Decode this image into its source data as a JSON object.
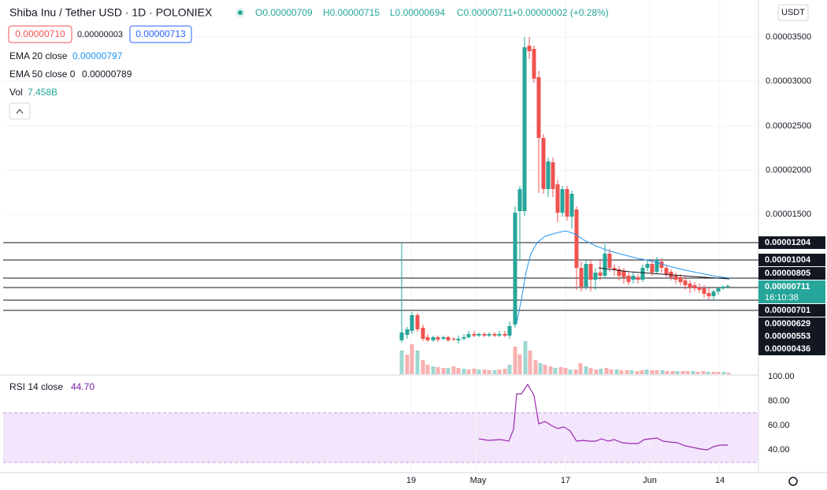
{
  "header": {
    "title": "Shiba Inu / Tether USD · 1D · POLONIEX",
    "open": "O0.00000709",
    "high": "H0.00000715",
    "low": "L0.00000694",
    "close": "C0.00000711",
    "change": "+0.00000002 (+0.28%)"
  },
  "price_boxes": {
    "sell": "0.00000710",
    "spread": "0.00000003",
    "buy": "0.00000713"
  },
  "legend": {
    "ema20_label": "EMA 20 close",
    "ema20_value": "0.00000797",
    "ema50_label": "EMA 50 close 0",
    "ema50_value": "0.00000789",
    "vol_label": "Vol",
    "vol_value": "7.458B"
  },
  "currency": "USDT",
  "price_axis": [
    "0.00003500",
    "0.00003000",
    "0.00002500",
    "0.00002000",
    "0.00001500"
  ],
  "level_tags": [
    "0.00001204",
    "0.00001004",
    "0.00000805",
    "0.00000701",
    "0.00000629",
    "0.00000553",
    "0.00000436"
  ],
  "last_price": {
    "price": "0.00000711",
    "countdown": "16:10:38"
  },
  "rsi": {
    "label": "RSI 14 close",
    "value": "44.70",
    "axis": [
      "100.00",
      "80.00",
      "60.00",
      "40.00"
    ]
  },
  "time_axis": [
    "19",
    "May",
    "17",
    "Jun",
    "14"
  ]
}
